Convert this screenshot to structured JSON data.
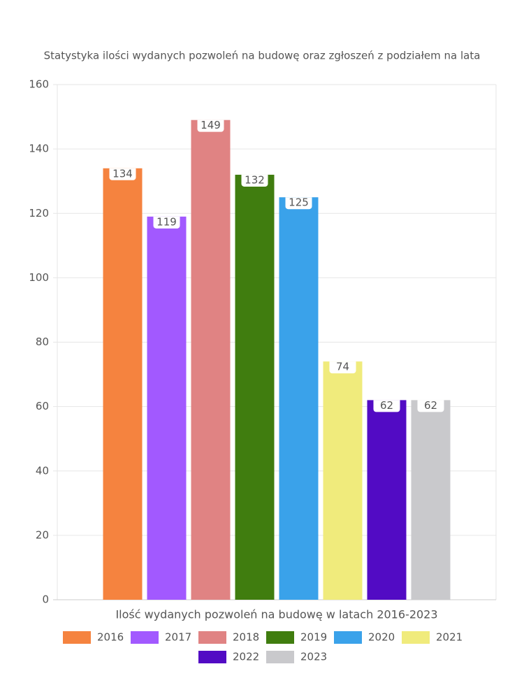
{
  "chart_data": {
    "type": "bar",
    "title": "Statystyka ilości wydanych pozwoleń na budowę oraz zgłoszeń z podziałem na lata",
    "x_label": "Ilość wydanych pozwoleń na budowę w latach 2016-2023",
    "categories": [
      null
    ],
    "series": [
      {
        "name": "2016",
        "color": "#f5833f",
        "values": [
          134
        ]
      },
      {
        "name": "2017",
        "color": "#a259ff",
        "values": [
          119
        ]
      },
      {
        "name": "2018",
        "color": "#e08383",
        "values": [
          149
        ]
      },
      {
        "name": "2019",
        "color": "#407d0f",
        "values": [
          132
        ]
      },
      {
        "name": "2020",
        "color": "#3aa2ea",
        "values": [
          125
        ]
      },
      {
        "name": "2021",
        "color": "#f0eb7c",
        "values": [
          74
        ]
      },
      {
        "name": "2022",
        "color": "#520bc4",
        "values": [
          62
        ]
      },
      {
        "name": "2023",
        "color": "#c9c9cc",
        "values": [
          62
        ]
      }
    ],
    "ylim": [
      0,
      160
    ],
    "yticks": [
      0,
      20,
      40,
      60,
      80,
      100,
      120,
      140,
      160
    ],
    "grid": true,
    "legend": "bottom"
  }
}
